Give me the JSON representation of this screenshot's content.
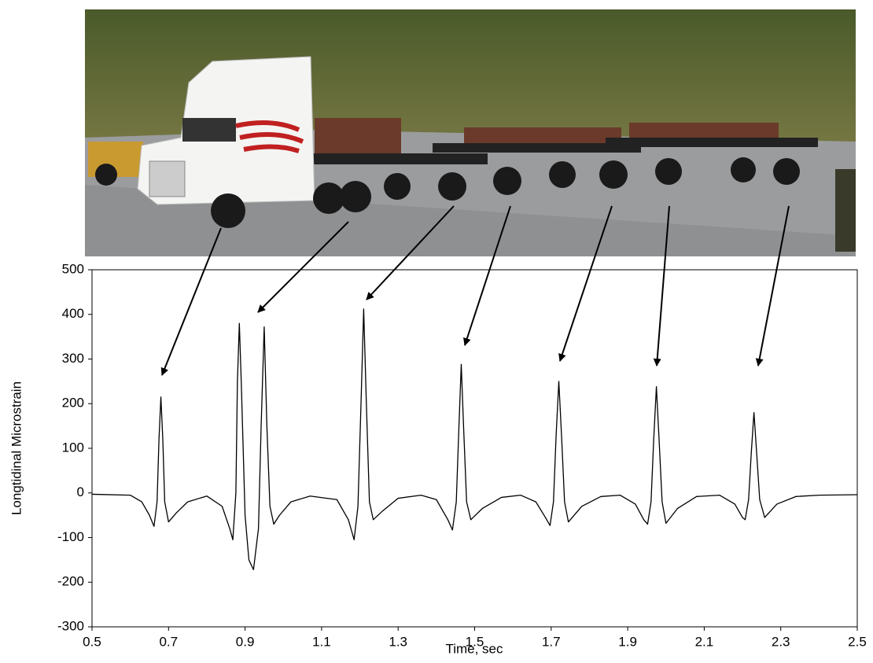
{
  "chart_data": {
    "type": "line",
    "xlabel": "Time, sec",
    "ylabel": "Longtidinal Microstrain",
    "xlim": [
      0.5,
      2.5
    ],
    "ylim": [
      -300,
      500
    ],
    "xticks": [
      0.5,
      0.7,
      0.9,
      1.1,
      1.3,
      1.5,
      1.7,
      1.9,
      2.1,
      2.3,
      2.5
    ],
    "yticks": [
      -300,
      -200,
      -100,
      0,
      100,
      200,
      300,
      400,
      500
    ],
    "x": [
      0.5,
      0.6,
      0.63,
      0.65,
      0.662,
      0.67,
      0.675,
      0.68,
      0.685,
      0.69,
      0.7,
      0.72,
      0.75,
      0.8,
      0.84,
      0.86,
      0.868,
      0.876,
      0.88,
      0.885,
      0.89,
      0.9,
      0.91,
      0.922,
      0.935,
      0.942,
      0.95,
      0.957,
      0.965,
      0.975,
      0.99,
      1.02,
      1.07,
      1.14,
      1.17,
      1.185,
      1.195,
      1.203,
      1.21,
      1.217,
      1.225,
      1.235,
      1.26,
      1.3,
      1.36,
      1.4,
      1.43,
      1.442,
      1.452,
      1.459,
      1.465,
      1.471,
      1.479,
      1.49,
      1.52,
      1.57,
      1.62,
      1.66,
      1.685,
      1.697,
      1.706,
      1.713,
      1.72,
      1.727,
      1.735,
      1.745,
      1.78,
      1.83,
      1.88,
      1.92,
      1.942,
      1.952,
      1.961,
      1.968,
      1.975,
      1.982,
      1.99,
      2.0,
      2.03,
      2.08,
      2.14,
      2.18,
      2.2,
      2.207,
      2.216,
      2.223,
      2.23,
      2.237,
      2.245,
      2.258,
      2.29,
      2.34,
      2.4,
      2.5
    ],
    "series": [
      {
        "color": "#000000",
        "values": [
          -3,
          -5,
          -20,
          -50,
          -75,
          -20,
          120,
          215,
          120,
          -20,
          -65,
          -45,
          -20,
          -7,
          -30,
          -80,
          -105,
          0,
          250,
          380,
          250,
          -50,
          -150,
          -172,
          -80,
          150,
          372,
          150,
          -30,
          -70,
          -50,
          -20,
          -7,
          -15,
          -60,
          -105,
          -30,
          200,
          412,
          200,
          -20,
          -60,
          -40,
          -12,
          -5,
          -15,
          -60,
          -83,
          -20,
          150,
          288,
          150,
          -20,
          -60,
          -35,
          -10,
          -5,
          -20,
          -55,
          -73,
          -20,
          130,
          250,
          130,
          -20,
          -65,
          -30,
          -8,
          -5,
          -25,
          -60,
          -70,
          -20,
          120,
          238,
          120,
          -20,
          -68,
          -35,
          -8,
          -5,
          -25,
          -55,
          -60,
          -15,
          90,
          180,
          90,
          -15,
          -55,
          -25,
          -8,
          -5,
          -4
        ]
      }
    ]
  }
}
